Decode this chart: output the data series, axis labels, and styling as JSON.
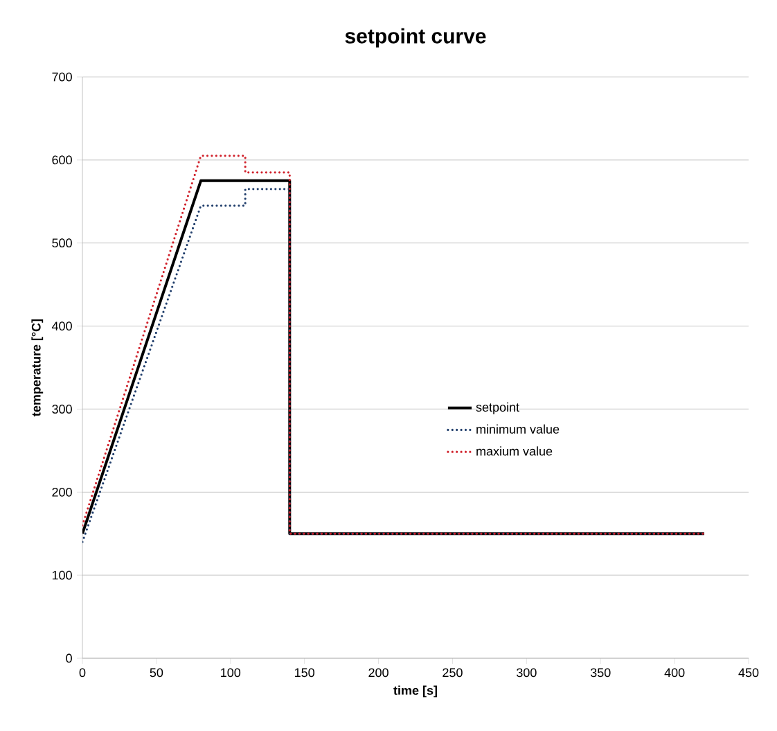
{
  "chart_data": {
    "type": "line",
    "title": "setpoint curve",
    "xlabel": "time [s]",
    "ylabel": "temperature [°C]",
    "xlim": [
      0,
      450
    ],
    "xticks": [
      0,
      50,
      100,
      150,
      200,
      250,
      300,
      350,
      400,
      450
    ],
    "ylim": [
      0,
      700
    ],
    "yticks": [
      0,
      100,
      200,
      300,
      400,
      500,
      600,
      700
    ],
    "grid": "y",
    "legend": "right",
    "marker": "none",
    "series": [
      {
        "name": "setpoint",
        "color": "#000000",
        "line_style": "solid",
        "x": [
          0,
          80,
          140,
          140,
          420
        ],
        "values": [
          150,
          575,
          575,
          150,
          150
        ]
      },
      {
        "name": "minimum value",
        "color": "#1f3d6b",
        "line_style": "dotted",
        "x": [
          0,
          80,
          110,
          110,
          140,
          140,
          420
        ],
        "values": [
          140,
          545,
          545,
          565,
          565,
          150,
          150
        ]
      },
      {
        "name": "maxium value",
        "color": "#d0202a",
        "line_style": "dotted",
        "x": [
          0,
          80,
          110,
          110,
          140,
          140,
          420
        ],
        "values": [
          160,
          605,
          605,
          585,
          585,
          150,
          150
        ]
      }
    ]
  }
}
